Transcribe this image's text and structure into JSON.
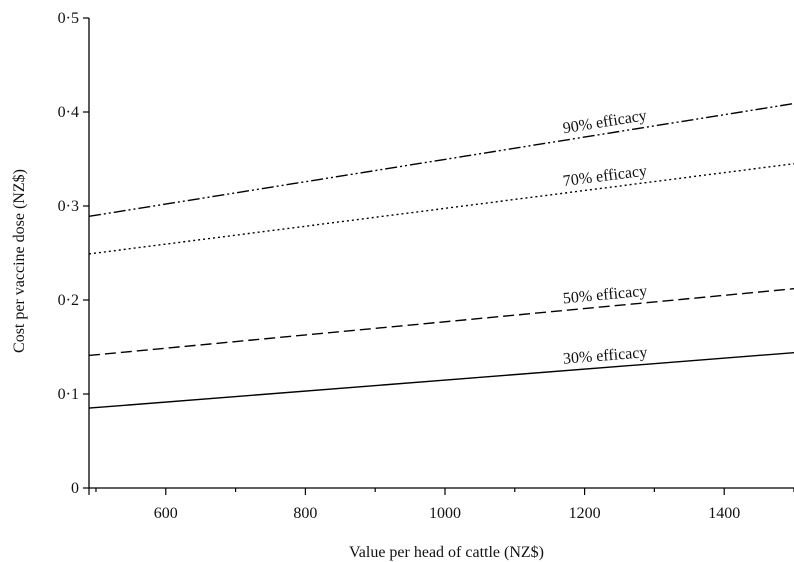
{
  "chart_data": {
    "type": "line",
    "title": "",
    "xlabel": "Value per head of cattle (NZ$)",
    "ylabel": "Cost per vaccine dose (NZ$)",
    "xlim": [
      490,
      1500
    ],
    "ylim": [
      0,
      0.5
    ],
    "x_ticks": [
      600,
      800,
      1000,
      1200,
      1400
    ],
    "x_tick_labels": [
      "600",
      "800",
      "1000",
      "1200",
      "1400"
    ],
    "y_ticks": [
      0,
      0.1,
      0.2,
      0.3,
      0.4,
      0.5
    ],
    "y_tick_labels": [
      "0",
      "0·1",
      "0·2",
      "0·3",
      "0·4",
      "0·5"
    ],
    "grid": false,
    "series": [
      {
        "name": "90% efficacy",
        "dash": "dash-dot-dot",
        "label_at_x": 1230,
        "x": [
          490,
          1500
        ],
        "y": [
          0.289,
          0.409
        ]
      },
      {
        "name": "70% efficacy",
        "dash": "dotted",
        "label_at_x": 1230,
        "x": [
          490,
          1500
        ],
        "y": [
          0.249,
          0.345
        ]
      },
      {
        "name": "50% efficacy",
        "dash": "dashed",
        "label_at_x": 1230,
        "x": [
          490,
          1500
        ],
        "y": [
          0.141,
          0.212
        ]
      },
      {
        "name": "30% efficacy",
        "dash": "solid",
        "label_at_x": 1230,
        "x": [
          490,
          1500
        ],
        "y": [
          0.085,
          0.144
        ]
      }
    ]
  }
}
